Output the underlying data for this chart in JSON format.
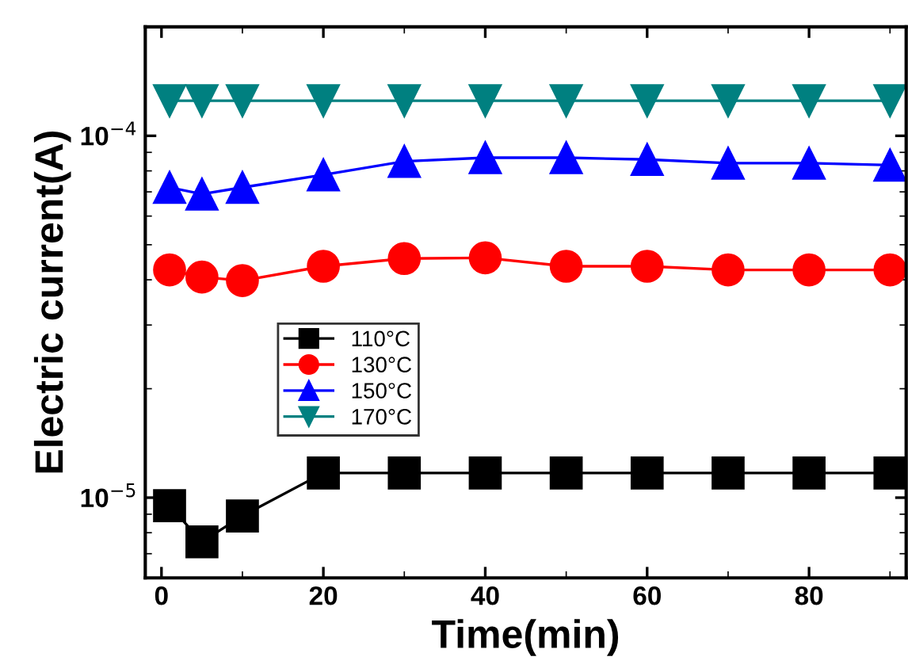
{
  "chart_data": {
    "type": "line",
    "xlabel": "Time(min)",
    "ylabel": "Electric current(A)",
    "x": [
      1,
      5,
      10,
      20,
      30,
      40,
      50,
      60,
      70,
      80,
      90
    ],
    "xlim": [
      -2,
      92
    ],
    "xticks": [
      0,
      20,
      40,
      60,
      80
    ],
    "ylim": [
      6e-06,
      0.0002
    ],
    "yticks": [
      {
        "value": 1e-05,
        "label": "10$^{−5}$"
      },
      {
        "value": 0.0001,
        "label": "10$^{−4}$"
      }
    ],
    "log": "y",
    "grid": false,
    "legend": "center left",
    "line_style": "solid",
    "series": [
      {
        "name": "110°C",
        "color": "#000000",
        "marker": "square",
        "values": [
          9.5e-06,
          7.55e-06,
          8.9e-06,
          1.17e-05,
          1.17e-05,
          1.17e-05,
          1.17e-05,
          1.17e-05,
          1.17e-05,
          1.17e-05,
          1.17e-05
        ]
      },
      {
        "name": "130°C",
        "color": "#ff0000",
        "marker": "circle",
        "values": [
          4.26e-05,
          4.07e-05,
          3.98e-05,
          4.36e-05,
          4.58e-05,
          4.6e-05,
          4.36e-05,
          4.36e-05,
          4.26e-05,
          4.26e-05,
          4.26e-05
        ]
      },
      {
        "name": "150°C",
        "color": "#0000ff",
        "marker": "triangle",
        "values": [
          7.2e-05,
          6.9e-05,
          7.2e-05,
          7.8e-05,
          8.5e-05,
          8.7e-05,
          8.7e-05,
          8.6e-05,
          8.4e-05,
          8.4e-05,
          8.3e-05
        ]
      },
      {
        "name": "170°C",
        "color": "#008080",
        "marker": "triangle_down",
        "values": [
          0.000125,
          0.000125,
          0.000125,
          0.000125,
          0.000125,
          0.000125,
          0.000125,
          0.000125,
          0.000125,
          0.000125,
          0.000125
        ]
      }
    ]
  }
}
